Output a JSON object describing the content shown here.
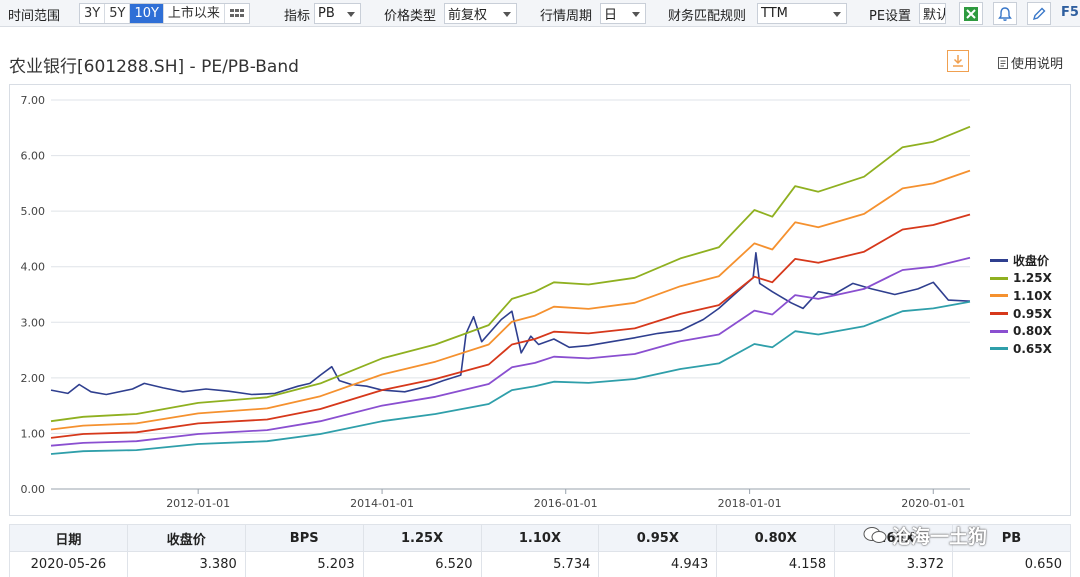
{
  "toolbar": {
    "time_range_label": "时间范围",
    "ranges": [
      "3Y",
      "5Y",
      "10Y",
      "上市以来"
    ],
    "active_range": "10Y",
    "indicator_label": "指标",
    "indicator_value": "PB",
    "price_type_label": "价格类型",
    "price_type_value": "前复权",
    "period_label": "行情周期",
    "period_value": "日",
    "fin_rule_label": "财务匹配规则",
    "fin_rule_value": "TTM",
    "pe_setting_label": "PE设置",
    "pe_setting_value": "默认",
    "f5_label": "F5"
  },
  "title": "农业银行[601288.SH] - PE/PB-Band",
  "help_label": "使用说明",
  "table": {
    "headers": [
      "日期",
      "收盘价",
      "BPS",
      "1.25X",
      "1.10X",
      "0.95X",
      "0.80X",
      "0.65X",
      "PB"
    ],
    "row": [
      "2020-05-26",
      "3.380",
      "5.203",
      "6.520",
      "5.734",
      "4.943",
      "4.158",
      "3.372",
      "0.650"
    ]
  },
  "watermark": "沧海一土狗",
  "chart_data": {
    "type": "line",
    "title": "",
    "xlabel": "",
    "ylabel": "",
    "ylim": [
      0,
      7
    ],
    "y_ticks": [
      "0.00",
      "1.00",
      "2.00",
      "3.00",
      "4.00",
      "5.00",
      "6.00",
      "7.00"
    ],
    "x_range": [
      "2010-05-26",
      "2020-05-26"
    ],
    "x_ticks": [
      "2012-01-01",
      "2014-01-01",
      "2016-01-01",
      "2018-01-01",
      "2020-01-01"
    ],
    "grid": true,
    "legend_position": "right",
    "series": [
      {
        "name": "收盘价",
        "color": "#2f3f8f",
        "points": [
          [
            "2010-05-26",
            1.78
          ],
          [
            "2010-08-01",
            1.72
          ],
          [
            "2010-09-15",
            1.88
          ],
          [
            "2010-11-01",
            1.75
          ],
          [
            "2011-01-01",
            1.7
          ],
          [
            "2011-04-15",
            1.8
          ],
          [
            "2011-06-01",
            1.9
          ],
          [
            "2011-08-15",
            1.82
          ],
          [
            "2011-11-01",
            1.75
          ],
          [
            "2012-02-01",
            1.8
          ],
          [
            "2012-05-01",
            1.76
          ],
          [
            "2012-08-01",
            1.7
          ],
          [
            "2012-11-01",
            1.72
          ],
          [
            "2013-02-01",
            1.85
          ],
          [
            "2013-03-20",
            1.9
          ],
          [
            "2013-05-01",
            2.05
          ],
          [
            "2013-06-15",
            2.2
          ],
          [
            "2013-07-15",
            1.95
          ],
          [
            "2013-09-01",
            1.88
          ],
          [
            "2013-11-01",
            1.85
          ],
          [
            "2014-01-01",
            1.78
          ],
          [
            "2014-04-01",
            1.75
          ],
          [
            "2014-07-01",
            1.85
          ],
          [
            "2014-09-01",
            1.95
          ],
          [
            "2014-11-10",
            2.05
          ],
          [
            "2014-12-01",
            2.8
          ],
          [
            "2014-12-31",
            3.1
          ],
          [
            "2015-02-01",
            2.65
          ],
          [
            "2015-04-20",
            3.05
          ],
          [
            "2015-06-01",
            3.2
          ],
          [
            "2015-07-08",
            2.45
          ],
          [
            "2015-08-15",
            2.75
          ],
          [
            "2015-09-15",
            2.6
          ],
          [
            "2015-11-15",
            2.7
          ],
          [
            "2016-01-15",
            2.55
          ],
          [
            "2016-04-01",
            2.58
          ],
          [
            "2016-07-01",
            2.65
          ],
          [
            "2016-10-01",
            2.72
          ],
          [
            "2017-01-01",
            2.8
          ],
          [
            "2017-04-01",
            2.85
          ],
          [
            "2017-07-01",
            3.05
          ],
          [
            "2017-09-01",
            3.25
          ],
          [
            "2017-11-01",
            3.5
          ],
          [
            "2018-01-15",
            3.8
          ],
          [
            "2018-01-26",
            4.25
          ],
          [
            "2018-02-10",
            3.7
          ],
          [
            "2018-04-01",
            3.55
          ],
          [
            "2018-06-15",
            3.35
          ],
          [
            "2018-08-01",
            3.25
          ],
          [
            "2018-10-01",
            3.55
          ],
          [
            "2018-12-01",
            3.5
          ],
          [
            "2019-02-15",
            3.7
          ],
          [
            "2019-05-01",
            3.6
          ],
          [
            "2019-08-01",
            3.5
          ],
          [
            "2019-11-01",
            3.6
          ],
          [
            "2020-01-01",
            3.72
          ],
          [
            "2020-03-01",
            3.4
          ],
          [
            "2020-05-26",
            3.38
          ]
        ]
      },
      {
        "name": "1.25X",
        "color": "#8fb020",
        "points": [
          [
            "2010-05-26",
            1.22
          ],
          [
            "2010-10-01",
            1.3
          ],
          [
            "2011-05-01",
            1.35
          ],
          [
            "2012-01-01",
            1.55
          ],
          [
            "2012-10-01",
            1.65
          ],
          [
            "2013-05-01",
            1.9
          ],
          [
            "2014-01-01",
            2.35
          ],
          [
            "2014-08-01",
            2.6
          ],
          [
            "2015-03-01",
            2.95
          ],
          [
            "2015-06-01",
            3.42
          ],
          [
            "2015-09-01",
            3.55
          ],
          [
            "2015-11-15",
            3.72
          ],
          [
            "2016-04-01",
            3.68
          ],
          [
            "2016-10-01",
            3.8
          ],
          [
            "2017-04-01",
            4.15
          ],
          [
            "2017-09-01",
            4.35
          ],
          [
            "2018-01-20",
            5.02
          ],
          [
            "2018-04-01",
            4.9
          ],
          [
            "2018-07-01",
            5.45
          ],
          [
            "2018-10-01",
            5.35
          ],
          [
            "2019-04-01",
            5.62
          ],
          [
            "2019-09-01",
            6.15
          ],
          [
            "2020-01-01",
            6.25
          ],
          [
            "2020-05-26",
            6.52
          ]
        ]
      },
      {
        "name": "1.10X",
        "color": "#f5912f",
        "points": [
          [
            "2010-05-26",
            1.07
          ],
          [
            "2010-10-01",
            1.14
          ],
          [
            "2011-05-01",
            1.18
          ],
          [
            "2012-01-01",
            1.36
          ],
          [
            "2012-10-01",
            1.45
          ],
          [
            "2013-05-01",
            1.67
          ],
          [
            "2014-01-01",
            2.06
          ],
          [
            "2014-08-01",
            2.29
          ],
          [
            "2015-03-01",
            2.6
          ],
          [
            "2015-06-01",
            3.01
          ],
          [
            "2015-09-01",
            3.12
          ],
          [
            "2015-11-15",
            3.28
          ],
          [
            "2016-04-01",
            3.24
          ],
          [
            "2016-10-01",
            3.35
          ],
          [
            "2017-04-01",
            3.65
          ],
          [
            "2017-09-01",
            3.83
          ],
          [
            "2018-01-20",
            4.42
          ],
          [
            "2018-04-01",
            4.31
          ],
          [
            "2018-07-01",
            4.8
          ],
          [
            "2018-10-01",
            4.71
          ],
          [
            "2019-04-01",
            4.95
          ],
          [
            "2019-09-01",
            5.41
          ],
          [
            "2020-01-01",
            5.5
          ],
          [
            "2020-05-26",
            5.73
          ]
        ]
      },
      {
        "name": "0.95X",
        "color": "#d6381b",
        "points": [
          [
            "2010-05-26",
            0.92
          ],
          [
            "2010-10-01",
            0.99
          ],
          [
            "2011-05-01",
            1.02
          ],
          [
            "2012-01-01",
            1.18
          ],
          [
            "2012-10-01",
            1.25
          ],
          [
            "2013-05-01",
            1.44
          ],
          [
            "2014-01-01",
            1.78
          ],
          [
            "2014-08-01",
            1.98
          ],
          [
            "2015-03-01",
            2.24
          ],
          [
            "2015-06-01",
            2.6
          ],
          [
            "2015-09-01",
            2.7
          ],
          [
            "2015-11-15",
            2.83
          ],
          [
            "2016-04-01",
            2.8
          ],
          [
            "2016-10-01",
            2.89
          ],
          [
            "2017-04-01",
            3.15
          ],
          [
            "2017-09-01",
            3.31
          ],
          [
            "2018-01-20",
            3.82
          ],
          [
            "2018-04-01",
            3.72
          ],
          [
            "2018-07-01",
            4.14
          ],
          [
            "2018-10-01",
            4.07
          ],
          [
            "2019-04-01",
            4.27
          ],
          [
            "2019-09-01",
            4.67
          ],
          [
            "2020-01-01",
            4.75
          ],
          [
            "2020-05-26",
            4.94
          ]
        ]
      },
      {
        "name": "0.80X",
        "color": "#8a4fd0",
        "points": [
          [
            "2010-05-26",
            0.78
          ],
          [
            "2010-10-01",
            0.83
          ],
          [
            "2011-05-01",
            0.86
          ],
          [
            "2012-01-01",
            0.99
          ],
          [
            "2012-10-01",
            1.06
          ],
          [
            "2013-05-01",
            1.22
          ],
          [
            "2014-01-01",
            1.5
          ],
          [
            "2014-08-01",
            1.66
          ],
          [
            "2015-03-01",
            1.89
          ],
          [
            "2015-06-01",
            2.19
          ],
          [
            "2015-09-01",
            2.27
          ],
          [
            "2015-11-15",
            2.38
          ],
          [
            "2016-04-01",
            2.35
          ],
          [
            "2016-10-01",
            2.43
          ],
          [
            "2017-04-01",
            2.66
          ],
          [
            "2017-09-01",
            2.78
          ],
          [
            "2018-01-20",
            3.21
          ],
          [
            "2018-04-01",
            3.14
          ],
          [
            "2018-07-01",
            3.49
          ],
          [
            "2018-10-01",
            3.42
          ],
          [
            "2019-04-01",
            3.6
          ],
          [
            "2019-09-01",
            3.94
          ],
          [
            "2020-01-01",
            4.0
          ],
          [
            "2020-05-26",
            4.16
          ]
        ]
      },
      {
        "name": "0.65X",
        "color": "#2f9faa",
        "points": [
          [
            "2010-05-26",
            0.63
          ],
          [
            "2010-10-01",
            0.68
          ],
          [
            "2011-05-01",
            0.7
          ],
          [
            "2012-01-01",
            0.81
          ],
          [
            "2012-10-01",
            0.86
          ],
          [
            "2013-05-01",
            0.99
          ],
          [
            "2014-01-01",
            1.22
          ],
          [
            "2014-08-01",
            1.35
          ],
          [
            "2015-03-01",
            1.53
          ],
          [
            "2015-06-01",
            1.78
          ],
          [
            "2015-09-01",
            1.85
          ],
          [
            "2015-11-15",
            1.93
          ],
          [
            "2016-04-01",
            1.91
          ],
          [
            "2016-10-01",
            1.98
          ],
          [
            "2017-04-01",
            2.16
          ],
          [
            "2017-09-01",
            2.26
          ],
          [
            "2018-01-20",
            2.61
          ],
          [
            "2018-04-01",
            2.55
          ],
          [
            "2018-07-01",
            2.84
          ],
          [
            "2018-10-01",
            2.78
          ],
          [
            "2019-04-01",
            2.93
          ],
          [
            "2019-09-01",
            3.2
          ],
          [
            "2020-01-01",
            3.25
          ],
          [
            "2020-05-26",
            3.37
          ]
        ]
      }
    ]
  }
}
